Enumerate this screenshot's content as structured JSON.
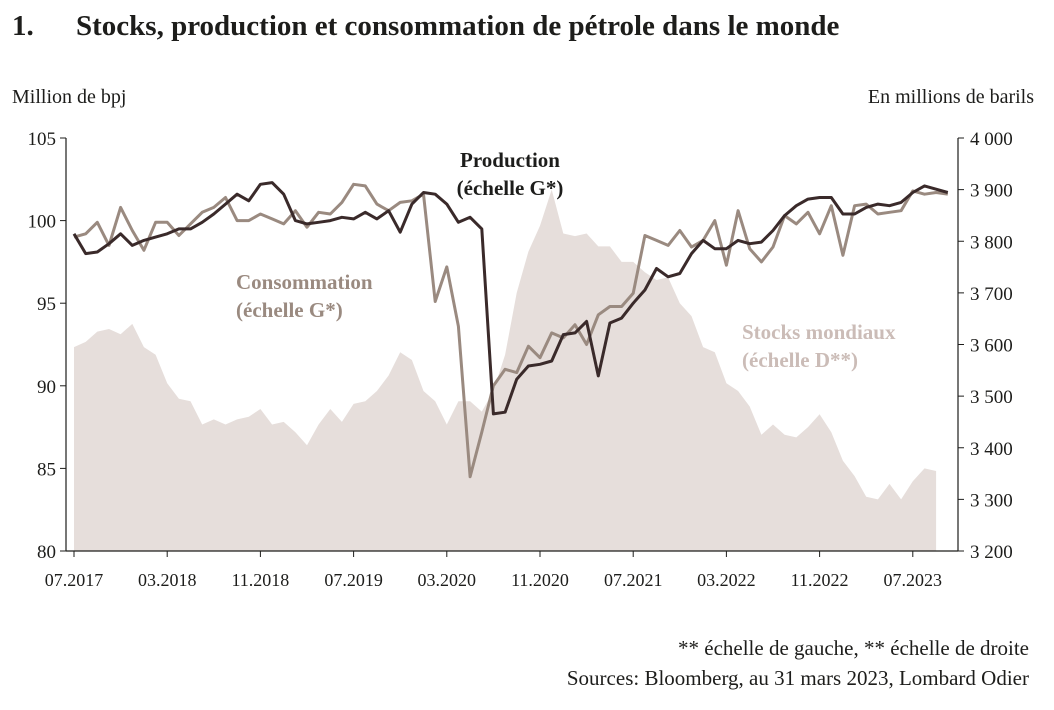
{
  "title_number": "1.",
  "title": "Stocks, production et consommation de pétrole dans le monde",
  "left_unit": "Million de bpj",
  "right_unit": "En millions de barils",
  "footnote": "** échelle de gauche, ** échelle de droite",
  "sources": "Sources: Bloomberg, au 31 mars 2023, Lombard Odier",
  "chart_data": {
    "type": "line",
    "x_start": "07.2017",
    "x_labels": [
      "07.2017",
      "03.2018",
      "11.2018",
      "07.2019",
      "03.2020",
      "11.2020",
      "07.2021",
      "03.2022",
      "11.2022",
      "07.2023"
    ],
    "x_label_index": [
      0,
      8,
      16,
      24,
      32,
      40,
      48,
      56,
      64,
      72
    ],
    "y_left": {
      "min": 80,
      "max": 105,
      "ticks": [
        80,
        85,
        90,
        95,
        100,
        105
      ]
    },
    "y_right": {
      "min": 3200,
      "max": 4000,
      "ticks": [
        3200,
        3300,
        3400,
        3500,
        3600,
        3700,
        3800,
        3900,
        4000
      ],
      "tick_labels": [
        "3 200",
        "3 300",
        "3 400",
        "3 500",
        "3 600",
        "3 700",
        "3 800",
        "3 900",
        "4 000"
      ]
    },
    "colors": {
      "production": "#3a2a2a",
      "consumption": "#9a8a80",
      "stocks": "#e6dedb",
      "stocks_label": "#cbbcb7",
      "axis": "#1d1d1b"
    },
    "series": [
      {
        "key": "production",
        "axis": "left",
        "label_lines": [
          "Production",
          "(échelle G*)"
        ],
        "values": [
          99.2,
          98.0,
          98.1,
          98.6,
          99.2,
          98.5,
          98.8,
          99.0,
          99.2,
          99.5,
          99.5,
          99.9,
          100.4,
          101.0,
          101.6,
          101.2,
          102.2,
          102.3,
          101.6,
          100.0,
          99.8,
          99.9,
          100.0,
          100.2,
          100.1,
          100.5,
          100.1,
          100.6,
          99.3,
          101.0,
          101.7,
          101.6,
          101.0,
          99.9,
          100.2,
          99.5,
          88.3,
          88.4,
          90.4,
          91.2,
          91.3,
          91.5,
          93.1,
          93.2,
          93.9,
          90.6,
          93.8,
          94.1,
          95.0,
          95.8,
          97.1,
          96.6,
          96.8,
          98.0,
          98.8,
          98.3,
          98.3,
          98.8,
          98.6,
          98.7,
          99.4,
          100.3,
          100.9,
          101.3,
          101.4,
          101.4,
          100.4,
          100.4,
          100.8,
          101.0,
          100.9,
          101.1,
          101.7,
          102.1,
          101.9,
          101.7
        ]
      },
      {
        "key": "consumption",
        "axis": "left",
        "label_lines": [
          "Consommation",
          "(échelle G*)"
        ],
        "values": [
          99.0,
          99.2,
          99.9,
          98.5,
          100.8,
          99.4,
          98.2,
          99.9,
          99.9,
          99.1,
          99.8,
          100.5,
          100.8,
          101.4,
          100.0,
          100.0,
          100.4,
          100.1,
          99.8,
          100.6,
          99.6,
          100.5,
          100.4,
          101.1,
          102.2,
          102.1,
          101.0,
          100.6,
          101.1,
          101.2,
          101.6,
          95.1,
          97.2,
          93.6,
          84.5,
          87.2,
          90.0,
          91.0,
          90.8,
          92.4,
          91.7,
          93.2,
          92.9,
          93.7,
          92.5,
          94.3,
          94.8,
          94.8,
          95.6,
          99.1,
          98.8,
          98.5,
          99.4,
          98.4,
          98.8,
          100.0,
          97.3,
          100.6,
          98.3,
          97.5,
          98.4,
          100.3,
          99.8,
          100.5,
          99.2,
          100.9,
          97.9,
          100.9,
          101.0,
          100.4,
          100.5,
          100.6,
          101.8,
          101.6,
          101.7,
          101.6
        ]
      },
      {
        "key": "stocks",
        "axis": "right",
        "label_lines": [
          "Stocks mondiaux",
          "(échelle D**)"
        ],
        "values": [
          3595,
          3605,
          3625,
          3630,
          3620,
          3640,
          3595,
          3580,
          3525,
          3495,
          3490,
          3445,
          3455,
          3445,
          3455,
          3460,
          3475,
          3445,
          3450,
          3430,
          3405,
          3445,
          3475,
          3450,
          3485,
          3490,
          3510,
          3540,
          3585,
          3570,
          3510,
          3490,
          3445,
          3490,
          3490,
          3470,
          3510,
          3580,
          3700,
          3780,
          3830,
          3900,
          3815,
          3810,
          3815,
          3790,
          3790,
          3760,
          3760,
          3740,
          3725,
          3730,
          3680,
          3655,
          3595,
          3585,
          3525,
          3510,
          3480,
          3425,
          3445,
          3425,
          3420,
          3440,
          3465,
          3430,
          3375,
          3345,
          3305,
          3300,
          3330,
          3300,
          3335,
          3360,
          3355
        ]
      }
    ]
  }
}
